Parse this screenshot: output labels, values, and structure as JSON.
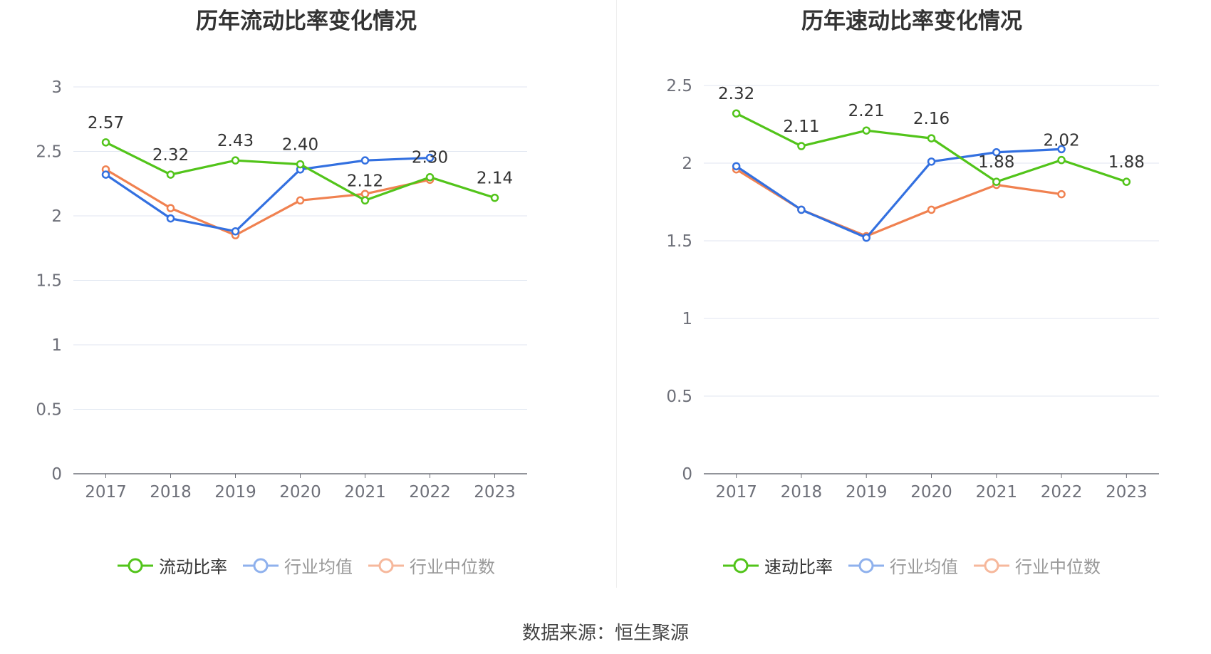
{
  "colors": {
    "main": "#52c41a",
    "avg": "#3370e0",
    "median": "#f08150",
    "grid": "#e0e6f1",
    "axis": "#6e7079"
  },
  "source_text": "数据来源：恒生聚源",
  "charts": [
    {
      "title": "历年流动比率变化情况",
      "legend": [
        "流动比率",
        "行业均值",
        "行业中位数"
      ]
    },
    {
      "title": "历年速动比率变化情况",
      "legend": [
        "速动比率",
        "行业均值",
        "行业中位数"
      ]
    }
  ],
  "chart_data": [
    {
      "type": "line",
      "title": "历年流动比率变化情况",
      "categories": [
        "2017",
        "2018",
        "2019",
        "2020",
        "2021",
        "2022",
        "2023"
      ],
      "ylim": [
        0,
        3
      ],
      "yticks": [
        0,
        0.5,
        1,
        1.5,
        2,
        2.5,
        3
      ],
      "ytick_labels": [
        "0",
        "0.5",
        "1",
        "1.5",
        "2",
        "2.5",
        "3"
      ],
      "grid": true,
      "legend_position": "bottom",
      "series": [
        {
          "name": "流动比率",
          "values": [
            2.57,
            2.32,
            2.43,
            2.4,
            2.12,
            2.3,
            2.14
          ],
          "labels": [
            "2.57",
            "2.32",
            "2.43",
            "2.40",
            "2.12",
            "2.30",
            "2.14"
          ]
        },
        {
          "name": "行业均值",
          "values": [
            2.32,
            1.98,
            1.88,
            2.36,
            2.43,
            2.45,
            null
          ]
        },
        {
          "name": "行业中位数",
          "values": [
            2.36,
            2.06,
            1.85,
            2.12,
            2.17,
            2.28,
            null
          ]
        }
      ]
    },
    {
      "type": "line",
      "title": "历年速动比率变化情况",
      "categories": [
        "2017",
        "2018",
        "2019",
        "2020",
        "2021",
        "2022",
        "2023"
      ],
      "ylim": [
        0,
        2.5
      ],
      "yticks": [
        0,
        0.5,
        1,
        1.5,
        2,
        2.5
      ],
      "ytick_labels": [
        "0",
        "0.5",
        "1",
        "1.5",
        "2",
        "2.5"
      ],
      "grid": true,
      "legend_position": "bottom",
      "series": [
        {
          "name": "速动比率",
          "values": [
            2.32,
            2.11,
            2.21,
            2.16,
            1.88,
            2.02,
            1.88
          ],
          "labels": [
            "2.32",
            "2.11",
            "2.21",
            "2.16",
            "1.88",
            "2.02",
            "1.88"
          ]
        },
        {
          "name": "行业均值",
          "values": [
            1.98,
            1.7,
            1.52,
            2.01,
            2.07,
            2.09,
            null
          ]
        },
        {
          "name": "行业中位数",
          "values": [
            1.96,
            1.7,
            1.53,
            1.7,
            1.86,
            1.8,
            null
          ]
        }
      ]
    }
  ]
}
